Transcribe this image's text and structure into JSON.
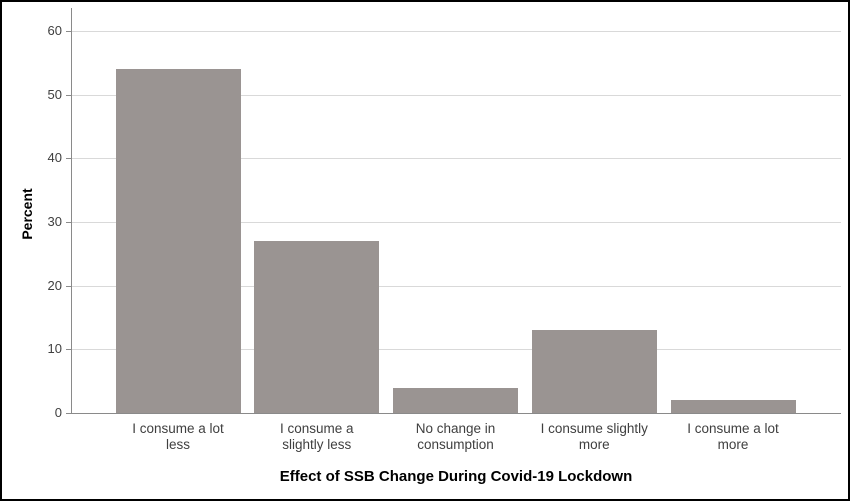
{
  "chart_data": {
    "type": "bar",
    "title": "",
    "xlabel": "Effect of SSB Change During Covid-19 Lockdown",
    "ylabel": "Percent",
    "categories": [
      "I consume a lot less",
      "I consume a slightly less",
      "No change in consumption",
      "I consume slightly more",
      "I consume a lot more"
    ],
    "category_label_lines": [
      [
        "I consume a lot",
        "less"
      ],
      [
        "I consume a",
        "slightly less"
      ],
      [
        "No change in",
        "consumption"
      ],
      [
        "I consume slightly",
        "more"
      ],
      [
        "I consume a lot",
        "more"
      ]
    ],
    "values": [
      54,
      27,
      4,
      13,
      2
    ],
    "yticks": [
      0,
      10,
      20,
      30,
      40,
      50,
      60
    ],
    "ylim": [
      0,
      60
    ],
    "grid": true,
    "legend_position": "none",
    "bar_color": "#9a9492",
    "gridline_color": "#d9d9d9",
    "axis_color": "#8a8a8a",
    "tick_label_color": "#3f3f3f",
    "title_color": "#000000",
    "frame_color": "#000000"
  }
}
